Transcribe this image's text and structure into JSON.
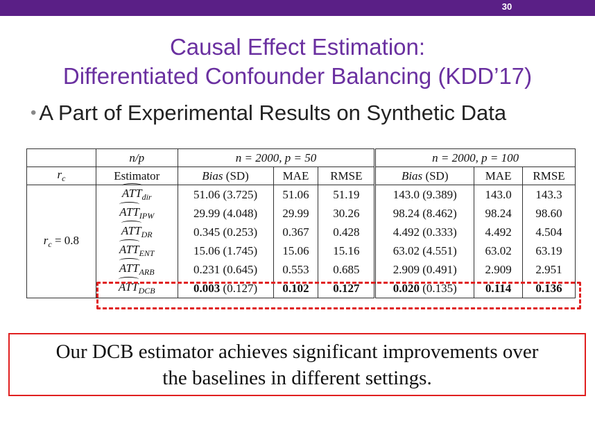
{
  "header": {
    "slide_number": "30",
    "bar_color": "#5a1f86"
  },
  "title": {
    "line1": "Causal Effect Estimation:",
    "line2": "Differentiated Confounder Balancing (KDD’17)"
  },
  "bullet": "A Part of Experimental Results on Synthetic Data",
  "table": {
    "np_label": "n/p",
    "group1_label": "n = 2000, p = 50",
    "group2_label": "n = 2000, p = 100",
    "rc_label": "r",
    "rc_sub": "c",
    "estimator_label": "Estimator",
    "bias_label": "Bias",
    "sd_label": "(SD)",
    "mae_label": "MAE",
    "rmse_label": "RMSE",
    "rc_value": "r",
    "rc_value_rest": " = 0.8",
    "att": "ATT",
    "rows": [
      {
        "sub": "dir",
        "g1": [
          "51.06 (3.725)",
          "51.06",
          "51.19"
        ],
        "g2": [
          "143.0 (9.389)",
          "143.0",
          "143.3"
        ]
      },
      {
        "sub": "IPW",
        "g1": [
          "29.99 (4.048)",
          "29.99",
          "30.26"
        ],
        "g2": [
          "98.24 (8.462)",
          "98.24",
          "98.60"
        ]
      },
      {
        "sub": "DR",
        "g1": [
          "0.345 (0.253)",
          "0.367",
          "0.428"
        ],
        "g2": [
          "4.492 (0.333)",
          "4.492",
          "4.504"
        ]
      },
      {
        "sub": "ENT",
        "g1": [
          "15.06 (1.745)",
          "15.06",
          "15.16"
        ],
        "g2": [
          "63.02 (4.551)",
          "63.02",
          "63.19"
        ]
      },
      {
        "sub": "ARB",
        "g1": [
          "0.231 (0.645)",
          "0.553",
          "0.685"
        ],
        "g2": [
          "2.909 (0.491)",
          "2.909",
          "2.951"
        ]
      }
    ],
    "dcb": {
      "sub": "DCB",
      "g1_bias": "0.003",
      "g1_sd": "(0.127)",
      "g1_mae": "0.102",
      "g1_rmse": "0.127",
      "g2_bias": "0.020",
      "g2_sd": "(0.135)",
      "g2_mae": "0.114",
      "g2_rmse": "0.136"
    }
  },
  "callout": {
    "line1": "Our DCB estimator achieves significant improvements over",
    "line2": "the baselines in different settings."
  },
  "colors": {
    "title": "#6a30a0",
    "highlight": "#e02020"
  }
}
